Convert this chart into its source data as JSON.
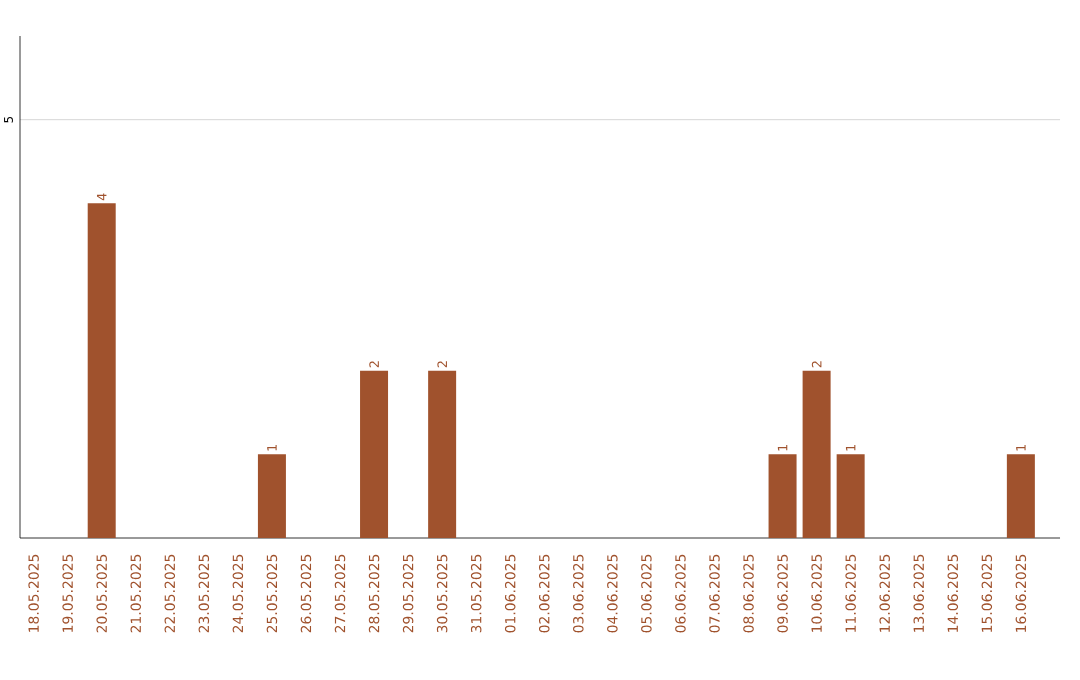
{
  "chart_data": {
    "type": "bar",
    "categories": [
      "18.05.2025",
      "19.05.2025",
      "20.05.2025",
      "21.05.2025",
      "22.05.2025",
      "23.05.2025",
      "24.05.2025",
      "25.05.2025",
      "26.05.2025",
      "27.05.2025",
      "28.05.2025",
      "29.05.2025",
      "30.05.2025",
      "31.05.2025",
      "01.06.2025",
      "02.06.2025",
      "03.06.2025",
      "04.06.2025",
      "05.06.2025",
      "06.06.2025",
      "07.06.2025",
      "08.06.2025",
      "09.06.2025",
      "10.06.2025",
      "11.06.2025",
      "12.06.2025",
      "13.06.2025",
      "14.06.2025",
      "15.06.2025",
      "16.06.2025"
    ],
    "values": [
      0,
      0,
      4,
      0,
      0,
      0,
      0,
      1,
      0,
      0,
      2,
      0,
      2,
      0,
      0,
      0,
      0,
      0,
      0,
      0,
      0,
      0,
      1,
      2,
      1,
      0,
      0,
      0,
      0,
      1
    ],
    "value_labels": [
      null,
      null,
      "4",
      null,
      null,
      null,
      null,
      "1",
      null,
      null,
      "2",
      null,
      "2",
      null,
      null,
      null,
      null,
      null,
      null,
      null,
      null,
      null,
      "1",
      "2",
      "1",
      null,
      null,
      null,
      null,
      "1"
    ],
    "color": "#a0522d",
    "ylim": [
      0,
      6
    ],
    "yticks": [
      5
    ],
    "grid": "y"
  }
}
